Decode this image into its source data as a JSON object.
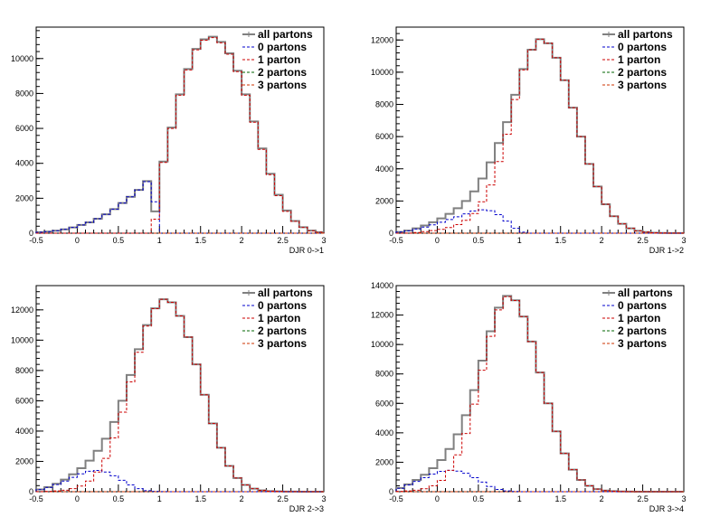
{
  "colors": {
    "all": "#808080",
    "p0": "#0000cc",
    "p1": "#cc0000",
    "p2": "#006600",
    "p3": "#cc3300",
    "axis": "#000000"
  },
  "chart_data": [
    {
      "type": "line",
      "xlabel": "DJR 0->1",
      "xlim": [
        -0.5,
        3
      ],
      "ylim": [
        0,
        11800
      ],
      "xticks": [
        -0.5,
        0,
        0.5,
        1,
        1.5,
        2,
        2.5,
        3
      ],
      "yticks": [
        0,
        2000,
        4000,
        6000,
        8000,
        10000
      ],
      "legend": {
        "position": "top-right",
        "entries": [
          "all partons",
          "0 partons",
          "1 parton",
          "2 partons",
          "3 partons"
        ]
      },
      "x": [
        -0.45,
        -0.35,
        -0.25,
        -0.15,
        -0.05,
        0.05,
        0.15,
        0.25,
        0.35,
        0.45,
        0.55,
        0.65,
        0.75,
        0.85,
        0.95,
        1.05,
        1.15,
        1.25,
        1.35,
        1.45,
        1.55,
        1.65,
        1.75,
        1.85,
        1.95,
        2.05,
        2.15,
        2.25,
        2.35,
        2.45,
        2.55,
        2.65,
        2.75,
        2.85,
        2.95
      ],
      "series": [
        {
          "name": "all partons",
          "key": "all",
          "values": [
            60,
            90,
            140,
            220,
            330,
            470,
            620,
            830,
            1080,
            1380,
            1730,
            2080,
            2480,
            2980,
            1250,
            4100,
            6050,
            7950,
            9400,
            10550,
            11100,
            11250,
            10950,
            10300,
            9300,
            7950,
            6400,
            4850,
            3400,
            2200,
            1300,
            700,
            340,
            150,
            60
          ]
        },
        {
          "name": "0 partons",
          "key": "p0",
          "values": [
            60,
            90,
            140,
            220,
            330,
            470,
            620,
            830,
            1080,
            1380,
            1730,
            2080,
            2480,
            2950,
            1800,
            0,
            0,
            0,
            0,
            0,
            0,
            0,
            0,
            0,
            0,
            0,
            0,
            0,
            0,
            0,
            0,
            0,
            0,
            0,
            0
          ]
        },
        {
          "name": "1 parton",
          "key": "p1",
          "values": [
            0,
            0,
            0,
            0,
            0,
            0,
            0,
            0,
            0,
            0,
            0,
            0,
            0,
            0,
            800,
            4050,
            6000,
            7900,
            9350,
            10500,
            11050,
            11200,
            10900,
            10250,
            9250,
            7900,
            6350,
            4800,
            3350,
            2150,
            1250,
            680,
            330,
            140,
            55
          ]
        },
        {
          "name": "2 partons",
          "key": "p2",
          "values": [
            0,
            0,
            0,
            0,
            0,
            0,
            0,
            0,
            0,
            0,
            0,
            0,
            0,
            0,
            0,
            0,
            0,
            0,
            0,
            0,
            0,
            0,
            0,
            0,
            0,
            0,
            0,
            0,
            0,
            0,
            0,
            0,
            0,
            0,
            0
          ]
        },
        {
          "name": "3 partons",
          "key": "p3",
          "values": [
            0,
            0,
            0,
            0,
            0,
            0,
            0,
            0,
            0,
            0,
            0,
            0,
            0,
            0,
            0,
            0,
            0,
            0,
            0,
            0,
            0,
            0,
            0,
            0,
            0,
            0,
            0,
            0,
            0,
            0,
            0,
            0,
            0,
            0,
            0
          ]
        }
      ]
    },
    {
      "type": "line",
      "xlabel": "DJR 1->2",
      "xlim": [
        -0.5,
        3
      ],
      "ylim": [
        0,
        12800
      ],
      "xticks": [
        -0.5,
        0,
        0.5,
        1,
        1.5,
        2,
        2.5,
        3
      ],
      "yticks": [
        0,
        2000,
        4000,
        6000,
        8000,
        10000,
        12000
      ],
      "legend": {
        "position": "top-right",
        "entries": [
          "all partons",
          "0 partons",
          "1 parton",
          "2 partons",
          "3 partons"
        ]
      },
      "x": [
        -0.45,
        -0.35,
        -0.25,
        -0.15,
        -0.05,
        0.05,
        0.15,
        0.25,
        0.35,
        0.45,
        0.55,
        0.65,
        0.75,
        0.85,
        0.95,
        1.05,
        1.15,
        1.25,
        1.35,
        1.45,
        1.55,
        1.65,
        1.75,
        1.85,
        1.95,
        2.05,
        2.15,
        2.25,
        2.35,
        2.45,
        2.55,
        2.65,
        2.75,
        2.85,
        2.95
      ],
      "series": [
        {
          "name": "all partons",
          "key": "all",
          "values": [
            80,
            160,
            300,
            480,
            680,
            920,
            1200,
            1550,
            2000,
            2600,
            3400,
            4400,
            5600,
            6900,
            8600,
            10200,
            11400,
            12050,
            11800,
            10900,
            9500,
            7800,
            6000,
            4300,
            2900,
            1800,
            1050,
            580,
            300,
            150,
            70,
            30,
            15,
            8,
            4
          ]
        },
        {
          "name": "0 partons",
          "key": "p0",
          "values": [
            80,
            150,
            260,
            380,
            520,
            680,
            850,
            1020,
            1200,
            1380,
            1450,
            1400,
            1150,
            750,
            300,
            60,
            0,
            0,
            0,
            0,
            0,
            0,
            0,
            0,
            0,
            0,
            0,
            0,
            0,
            0,
            0,
            0,
            0,
            0,
            0
          ]
        },
        {
          "name": "1 parton",
          "key": "p1",
          "values": [
            0,
            10,
            40,
            100,
            160,
            240,
            350,
            530,
            800,
            1220,
            1950,
            3000,
            4450,
            6150,
            8300,
            10140,
            11400,
            12050,
            11800,
            10900,
            9500,
            7800,
            6000,
            4300,
            2900,
            1800,
            1050,
            580,
            300,
            150,
            70,
            30,
            15,
            8,
            4
          ]
        },
        {
          "name": "2 partons",
          "key": "p2",
          "values": [
            0,
            0,
            0,
            0,
            0,
            0,
            0,
            0,
            0,
            0,
            0,
            0,
            0,
            0,
            0,
            0,
            0,
            0,
            0,
            0,
            0,
            0,
            0,
            0,
            0,
            0,
            0,
            0,
            0,
            0,
            0,
            0,
            0,
            0,
            0
          ]
        },
        {
          "name": "3 partons",
          "key": "p3",
          "values": [
            0,
            0,
            0,
            0,
            0,
            0,
            0,
            0,
            0,
            0,
            0,
            0,
            0,
            0,
            0,
            0,
            0,
            0,
            0,
            0,
            0,
            0,
            0,
            0,
            0,
            0,
            0,
            0,
            0,
            0,
            0,
            0,
            0,
            0,
            0
          ]
        }
      ]
    },
    {
      "type": "line",
      "xlabel": "DJR 2->3",
      "xlim": [
        -0.5,
        3
      ],
      "ylim": [
        0,
        13600
      ],
      "xticks": [
        -0.5,
        0,
        0.5,
        1,
        1.5,
        2,
        2.5,
        3
      ],
      "yticks": [
        0,
        2000,
        4000,
        6000,
        8000,
        10000,
        12000
      ],
      "legend": {
        "position": "top-right",
        "entries": [
          "all partons",
          "0 partons",
          "1 parton",
          "2 partons",
          "3 partons"
        ]
      },
      "x": [
        -0.45,
        -0.35,
        -0.25,
        -0.15,
        -0.05,
        0.05,
        0.15,
        0.25,
        0.35,
        0.45,
        0.55,
        0.65,
        0.75,
        0.85,
        0.95,
        1.05,
        1.15,
        1.25,
        1.35,
        1.45,
        1.55,
        1.65,
        1.75,
        1.85,
        1.95,
        2.05,
        2.15,
        2.25,
        2.35,
        2.45,
        2.55,
        2.65,
        2.75,
        2.85,
        2.95
      ],
      "series": [
        {
          "name": "all partons",
          "key": "all",
          "values": [
            150,
            300,
            520,
            800,
            1150,
            1550,
            2050,
            2700,
            3500,
            4600,
            6000,
            7700,
            9400,
            11000,
            12100,
            12700,
            12500,
            11600,
            10200,
            8400,
            6400,
            4500,
            2900,
            1700,
            900,
            450,
            200,
            90,
            40,
            20,
            10,
            5,
            3,
            1,
            1
          ]
        },
        {
          "name": "0 partons",
          "key": "p0",
          "values": [
            140,
            280,
            470,
            700,
            950,
            1180,
            1350,
            1400,
            1300,
            1050,
            750,
            450,
            200,
            70,
            20,
            5,
            0,
            0,
            0,
            0,
            0,
            0,
            0,
            0,
            0,
            0,
            0,
            0,
            0,
            0,
            0,
            0,
            0,
            0,
            0
          ]
        },
        {
          "name": "1 parton",
          "key": "p1",
          "values": [
            10,
            20,
            50,
            100,
            200,
            370,
            700,
            1300,
            2200,
            3550,
            5250,
            7250,
            9200,
            10930,
            12080,
            12695,
            12500,
            11600,
            10200,
            8400,
            6400,
            4500,
            2900,
            1700,
            900,
            450,
            200,
            90,
            40,
            20,
            10,
            5,
            3,
            1,
            1
          ]
        },
        {
          "name": "2 partons",
          "key": "p2",
          "values": [
            0,
            0,
            0,
            0,
            0,
            0,
            0,
            0,
            0,
            0,
            0,
            0,
            0,
            0,
            0,
            0,
            0,
            0,
            0,
            0,
            0,
            0,
            0,
            0,
            0,
            0,
            0,
            0,
            0,
            0,
            0,
            0,
            0,
            0,
            0
          ]
        },
        {
          "name": "3 partons",
          "key": "p3",
          "values": [
            0,
            0,
            0,
            0,
            0,
            0,
            0,
            0,
            0,
            0,
            0,
            0,
            0,
            0,
            0,
            0,
            0,
            0,
            0,
            0,
            0,
            0,
            0,
            0,
            0,
            0,
            0,
            0,
            0,
            0,
            0,
            0,
            0,
            0,
            0
          ]
        }
      ]
    },
    {
      "type": "line",
      "xlabel": "DJR 3->4",
      "xlim": [
        -0.5,
        3
      ],
      "ylim": [
        0,
        14000
      ],
      "xticks": [
        -0.5,
        0,
        0.5,
        1,
        1.5,
        2,
        2.5,
        3
      ],
      "yticks": [
        0,
        2000,
        4000,
        6000,
        8000,
        10000,
        12000,
        14000
      ],
      "legend": {
        "position": "top-right",
        "entries": [
          "all partons",
          "0 partons",
          "1 parton",
          "2 partons",
          "3 partons"
        ]
      },
      "x": [
        -0.45,
        -0.35,
        -0.25,
        -0.15,
        -0.05,
        0.05,
        0.15,
        0.25,
        0.35,
        0.45,
        0.55,
        0.65,
        0.75,
        0.85,
        0.95,
        1.05,
        1.15,
        1.25,
        1.35,
        1.45,
        1.55,
        1.65,
        1.75,
        1.85,
        1.95,
        2.05,
        2.15,
        2.25,
        2.35,
        2.45,
        2.55,
        2.65,
        2.75,
        2.85,
        2.95
      ],
      "series": [
        {
          "name": "all partons",
          "key": "all",
          "values": [
            250,
            500,
            800,
            1150,
            1600,
            2150,
            2900,
            3900,
            5200,
            6900,
            8900,
            10900,
            12500,
            13300,
            13000,
            11900,
            10200,
            8100,
            6000,
            4100,
            2600,
            1500,
            800,
            400,
            180,
            80,
            35,
            15,
            7,
            3,
            1,
            1,
            0,
            0,
            0
          ]
        },
        {
          "name": "0 partons",
          "key": "p0",
          "values": [
            230,
            450,
            700,
            950,
            1200,
            1380,
            1450,
            1400,
            1250,
            950,
            650,
            350,
            150,
            50,
            15,
            3,
            0,
            0,
            0,
            0,
            0,
            0,
            0,
            0,
            0,
            0,
            0,
            0,
            0,
            0,
            0,
            0,
            0,
            0,
            0
          ]
        },
        {
          "name": "1 parton",
          "key": "p1",
          "values": [
            20,
            50,
            100,
            200,
            400,
            770,
            1450,
            2500,
            3950,
            5950,
            8250,
            10550,
            12350,
            13250,
            12985,
            11897,
            10200,
            8100,
            6000,
            4100,
            2600,
            1500,
            800,
            400,
            180,
            80,
            35,
            15,
            7,
            3,
            1,
            1,
            0,
            0,
            0
          ]
        },
        {
          "name": "2 partons",
          "key": "p2",
          "values": [
            0,
            0,
            0,
            0,
            0,
            0,
            0,
            0,
            0,
            0,
            0,
            0,
            0,
            0,
            0,
            0,
            0,
            0,
            0,
            0,
            0,
            0,
            0,
            0,
            0,
            0,
            0,
            0,
            0,
            0,
            0,
            0,
            0,
            0,
            0
          ]
        },
        {
          "name": "3 partons",
          "key": "p3",
          "values": [
            0,
            0,
            0,
            0,
            0,
            0,
            0,
            0,
            0,
            0,
            0,
            0,
            0,
            0,
            0,
            0,
            0,
            0,
            0,
            0,
            0,
            0,
            0,
            0,
            0,
            0,
            0,
            0,
            0,
            0,
            0,
            0,
            0,
            0,
            0
          ]
        }
      ]
    }
  ]
}
